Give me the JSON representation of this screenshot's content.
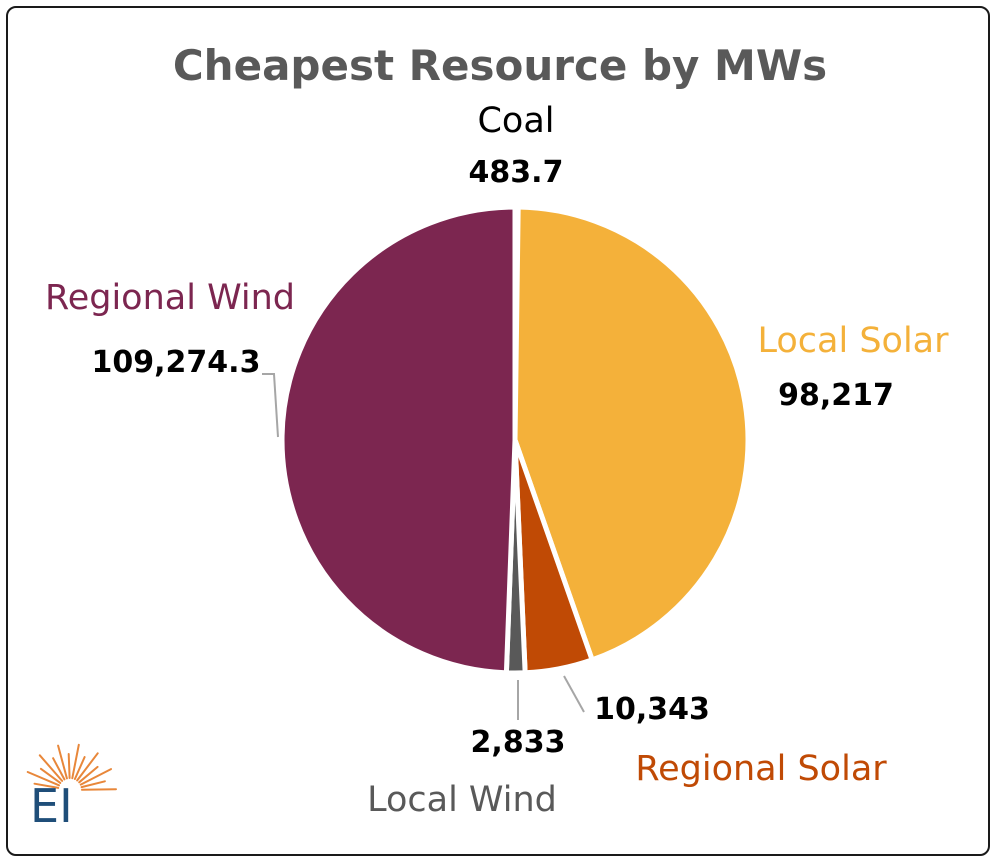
{
  "chart_data": {
    "type": "pie",
    "title": "Cheapest Resource by MWs",
    "slices": [
      {
        "label": "Coal",
        "value": 483.7,
        "value_label": "483.7",
        "color": "#7f7f7f",
        "label_color": "#000000"
      },
      {
        "label": "Local Solar",
        "value": 98217,
        "value_label": "98,217",
        "color": "#f4b13a",
        "label_color": "#f4b13a"
      },
      {
        "label": "Regional Solar",
        "value": 10343,
        "value_label": "10,343",
        "color": "#c04a05",
        "label_color": "#c04a05"
      },
      {
        "label": "Local Wind",
        "value": 2833,
        "value_label": "2,833",
        "color": "#595959",
        "label_color": "#595959"
      },
      {
        "label": "Regional Wind",
        "value": 109274.3,
        "value_label": "109,274.3",
        "color": "#7c2650",
        "label_color": "#7c2650"
      }
    ],
    "title_color": "#595959",
    "legend": "none"
  },
  "logo": {
    "text": "EI",
    "text_color": "#1f4e79",
    "ray_color": "#e8873a"
  }
}
